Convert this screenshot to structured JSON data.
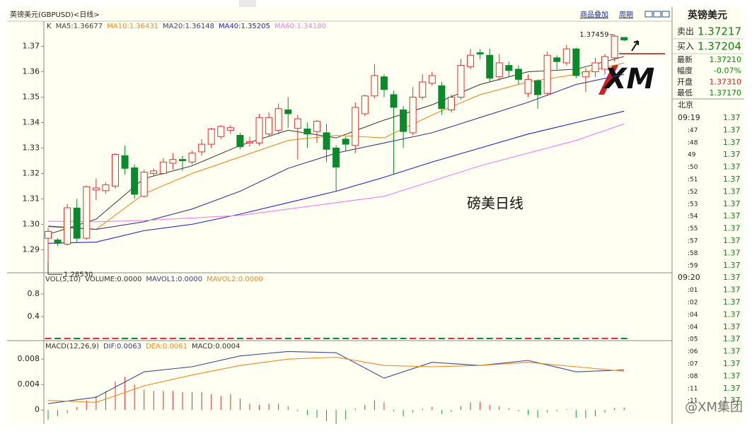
{
  "header": {
    "title": "英镑美元(GBPUSD)<日线>",
    "buttons": [
      "商品叠加",
      "周期"
    ]
  },
  "main_chart": {
    "type": "candlestick",
    "legend": [
      {
        "label": "K",
        "color": "#333333"
      },
      {
        "label": "MA5:1.36677",
        "color": "#444444"
      },
      {
        "label": "MA10:1.36431",
        "color": "#ee8a20"
      },
      {
        "label": "MA20:1.36148",
        "color": "#3c3c8c"
      },
      {
        "label": "MA40:1.35205",
        "color": "#2424c8"
      },
      {
        "label": "MA60:1.34180",
        "color": "#ee80ee"
      }
    ],
    "open": [
      1.2945,
      1.2938,
      1.2922,
      1.3064,
      1.2945,
      1.3135,
      1.3132,
      1.315,
      1.327,
      1.3222,
      1.311,
      1.32,
      1.32,
      1.324,
      1.3255,
      1.3245,
      1.3285,
      1.3315,
      1.3345,
      1.337,
      1.335,
      1.332,
      1.332,
      1.3355,
      1.337,
      1.345,
      1.3378,
      1.3375,
      1.3365,
      1.336,
      1.33,
      1.3335,
      1.331,
      1.3435,
      1.3505,
      1.358,
      1.351,
      1.345,
      1.336,
      1.35,
      1.3555,
      1.3545,
      1.345,
      1.35,
      1.362,
      1.3675,
      1.3665,
      1.358,
      1.3625,
      1.361,
      1.3515,
      1.3565,
      1.3515,
      1.3655,
      1.3635,
      1.369,
      1.358,
      1.36,
      1.361,
      1.3655,
      1.3735
    ],
    "high": [
      1.2985,
      1.2945,
      1.308,
      1.31,
      1.3152,
      1.318,
      1.3165,
      1.328,
      1.331,
      1.3235,
      1.3215,
      1.322,
      1.326,
      1.328,
      1.327,
      1.329,
      1.3335,
      1.338,
      1.339,
      1.339,
      1.336,
      1.3345,
      1.3435,
      1.344,
      1.3475,
      1.35,
      1.343,
      1.34,
      1.341,
      1.3395,
      1.331,
      1.3345,
      1.348,
      1.351,
      1.363,
      1.359,
      1.3525,
      1.3465,
      1.354,
      1.359,
      1.36,
      1.356,
      1.351,
      1.365,
      1.369,
      1.369,
      1.369,
      1.367,
      1.364,
      1.3625,
      1.359,
      1.357,
      1.368,
      1.3665,
      1.3705,
      1.3695,
      1.3615,
      1.3655,
      1.367,
      1.37459,
      1.3735
    ],
    "low": [
      1.2853,
      1.2915,
      1.2915,
      1.293,
      1.294,
      1.3095,
      1.312,
      1.314,
      1.3195,
      1.31,
      1.3105,
      1.319,
      1.3195,
      1.3215,
      1.321,
      1.3235,
      1.327,
      1.33,
      1.3335,
      1.3355,
      1.3295,
      1.3305,
      1.331,
      1.3345,
      1.3355,
      1.338,
      1.3255,
      1.33,
      1.332,
      1.3245,
      1.313,
      1.329,
      1.328,
      1.3425,
      1.3495,
      1.35,
      1.3195,
      1.33,
      1.335,
      1.349,
      1.3545,
      1.343,
      1.344,
      1.349,
      1.361,
      1.365,
      1.356,
      1.3565,
      1.358,
      1.355,
      1.35,
      1.3455,
      1.3505,
      1.361,
      1.3625,
      1.3575,
      1.352,
      1.358,
      1.359,
      1.364,
      1.372
    ],
    "close": [
      1.2972,
      1.2925,
      1.3065,
      1.2945,
      1.3148,
      1.3143,
      1.3155,
      1.3275,
      1.322,
      1.3118,
      1.3205,
      1.321,
      1.3245,
      1.3255,
      1.325,
      1.328,
      1.3315,
      1.3375,
      1.3385,
      1.338,
      1.3305,
      1.3325,
      1.342,
      1.342,
      1.3455,
      1.3435,
      1.3415,
      1.3355,
      1.3405,
      1.3295,
      1.3225,
      1.3315,
      1.346,
      1.3505,
      1.3585,
      1.353,
      1.346,
      1.3365,
      1.35,
      1.356,
      1.3585,
      1.3455,
      1.35,
      1.3625,
      1.3665,
      1.367,
      1.3575,
      1.3635,
      1.3605,
      1.357,
      1.357,
      1.351,
      1.3665,
      1.364,
      1.369,
      1.3585,
      1.36,
      1.3635,
      1.366,
      1.374,
      1.3725
    ],
    "up_color": "#e0302f",
    "down_color": "#0a8a2a",
    "ma_x": [
      0,
      5,
      10,
      15,
      20,
      25,
      30,
      35,
      40,
      45,
      50,
      55,
      60
    ],
    "ma_series": [
      {
        "color": "#444444",
        "values": [
          1.296,
          1.302,
          1.318,
          1.323,
          1.331,
          1.337,
          1.334,
          1.341,
          1.347,
          1.355,
          1.36,
          1.361,
          1.366
        ]
      },
      {
        "color": "#ee8a20",
        "values": [
          1.299,
          1.298,
          1.312,
          1.32,
          1.3265,
          1.333,
          1.335,
          1.334,
          1.343,
          1.351,
          1.356,
          1.359,
          1.3635
        ]
      },
      {
        "color": "#3c3c8c",
        "values": [
          1.2993,
          1.298,
          1.301,
          1.306,
          1.313,
          1.322,
          1.328,
          1.332,
          1.336,
          1.342,
          1.348,
          1.355,
          1.359
        ]
      },
      {
        "color": "#2424c8",
        "values": [
          1.2925,
          1.293,
          1.2975,
          1.3,
          1.304,
          1.3085,
          1.313,
          1.3185,
          1.3245,
          1.33,
          1.3355,
          1.34,
          1.3445
        ]
      },
      {
        "color": "#ee80ee",
        "values": [
          1.3012,
          1.301,
          1.3015,
          1.3025,
          1.3035,
          1.306,
          1.3085,
          1.311,
          1.317,
          1.323,
          1.328,
          1.333,
          1.3395
        ]
      }
    ],
    "ylim": [
      1.2812,
      1.3799
    ],
    "yticks": [
      1.29,
      {
        "value": 1.3,
        "label": "1.30"
      },
      1.31,
      1.32,
      1.33,
      1.34,
      1.35,
      1.36,
      1.37
    ],
    "high_label": "1.37459",
    "low_label": "1.28530",
    "caption": "磅美日线",
    "logo": "XM"
  },
  "volume_chart": {
    "type": "bar",
    "legend": [
      {
        "label": "VOL(5,10)",
        "color": "#333333"
      },
      {
        "label": "VOLUME:0.0000",
        "color": "#333333"
      },
      {
        "label": "MAVOL1:0.0000",
        "color": "#3c3c8c"
      },
      {
        "label": "MAVOL2:0.0000",
        "color": "#ee8a20"
      }
    ],
    "values": [
      0,
      0,
      0,
      0,
      0,
      0,
      0,
      0,
      0,
      0,
      0,
      0,
      0,
      0,
      0,
      0,
      0,
      0,
      0,
      0,
      0,
      0,
      0,
      0,
      0,
      0,
      0,
      0,
      0,
      0,
      0,
      0,
      0,
      0,
      0,
      0,
      0,
      0,
      0,
      0,
      0,
      0,
      0,
      0,
      0,
      0,
      0,
      0,
      0,
      0,
      0,
      0,
      0,
      0,
      0,
      0,
      0,
      0,
      0,
      0,
      0
    ],
    "ylim": [
      -0.025,
      1.15
    ],
    "yticks": [
      0.8,
      0.4
    ]
  },
  "macd_chart": {
    "type": "macd",
    "legend": [
      {
        "label": "MACD(12,26,9)",
        "color": "#333333"
      },
      {
        "label": "DIF:0.0063",
        "color": "#3c3c8c"
      },
      {
        "label": "DEA:0.0061",
        "color": "#ee8a20"
      },
      {
        "label": "MACD:0.0004",
        "color": "#333333"
      }
    ],
    "x": [
      0,
      5,
      10,
      15,
      20,
      25,
      30,
      35,
      40,
      45,
      50,
      55,
      60
    ],
    "series": [
      {
        "color": "#3c4a8c",
        "values": [
          0.001,
          0.002,
          0.006,
          0.0068,
          0.0085,
          0.0092,
          0.009,
          0.005,
          0.0075,
          0.007,
          0.0078,
          0.006,
          0.0063
        ]
      },
      {
        "color": "#ee8a20",
        "values": [
          0.0015,
          0.0012,
          0.0038,
          0.0055,
          0.007,
          0.008,
          0.0083,
          0.007,
          0.0068,
          0.007,
          0.0075,
          0.0068,
          0.0061
        ]
      }
    ],
    "histogram": [
      -0.0015,
      -0.001,
      -0.0005,
      0.0005,
      0.0015,
      0.0022,
      0.003,
      0.0045,
      0.0052,
      0.004,
      0.0032,
      0.003,
      0.003,
      0.003,
      0.0028,
      0.0028,
      0.0028,
      0.0025,
      0.0022,
      0.0025,
      0.0018,
      0.001,
      0.0008,
      0.001,
      0.001,
      0.0006,
      -0.0002,
      -0.0008,
      -0.0012,
      -0.0018,
      -0.0022,
      -0.0015,
      0.0002,
      0.0008,
      0.0015,
      0.0012,
      -0.0002,
      -0.001,
      -0.0004,
      0.0002,
      0.0005,
      -0.0006,
      -0.0003,
      0.0006,
      0.0012,
      0.0013,
      0.0008,
      0.0006,
      0.0003,
      -0.0002,
      -0.0008,
      -0.0012,
      -0.0004,
      -0.0002,
      0.0001,
      -0.0012,
      -0.0013,
      -0.001,
      -0.0004,
      0.0003,
      0.0004
    ],
    "pos_color": "#e03030",
    "neg_color": "#10a040",
    "ylim": [
      -0.0022,
      0.0108
    ],
    "yticks": [
      0.008,
      0.004,
      0
    ]
  },
  "quote_panel": {
    "title": "英镑美元",
    "big_rows": [
      {
        "label": "卖出",
        "value": "1.37217"
      },
      {
        "label": "买入",
        "value": "1.37204"
      }
    ],
    "rows": [
      {
        "label": "最新",
        "value": "1.37210",
        "color": "#108010"
      },
      {
        "label": "幅度",
        "value": "-0.07%",
        "color": "#108010"
      },
      {
        "label": "开盘",
        "value": "1.37310",
        "color": "#d02020"
      },
      {
        "label": "最低",
        "value": "1.37170",
        "color": "#108010"
      }
    ],
    "tick_header": "北京",
    "ticks": [
      [
        "09:19",
        "1.37"
      ],
      [
        ":47",
        "1.37"
      ],
      [
        ":48",
        "1.37"
      ],
      [
        "49",
        "1.37"
      ],
      [
        ":50",
        "1.37"
      ],
      [
        ":51",
        "1.37"
      ],
      [
        ":52",
        "1.37"
      ],
      [
        ":53",
        "1.37"
      ],
      [
        ":54",
        "1.37"
      ],
      [
        ":55",
        "1.37"
      ],
      [
        ":57",
        "1.37"
      ],
      [
        ":58",
        "1.37"
      ],
      [
        ":59",
        "1.37"
      ],
      [
        "09:20",
        "1.37"
      ],
      [
        ":01",
        "1.37"
      ],
      [
        ":02",
        "1.37"
      ],
      [
        ":04",
        "1.37"
      ],
      [
        ":04",
        "1.37"
      ],
      [
        ":05",
        "1.37"
      ],
      [
        ":06",
        "1.37"
      ],
      [
        ":07",
        "1.37"
      ],
      [
        ":08",
        "1.37"
      ],
      [
        ":11",
        "1.37"
      ],
      [
        ":11",
        "1.37"
      ]
    ]
  },
  "watermark": "@XM集团"
}
